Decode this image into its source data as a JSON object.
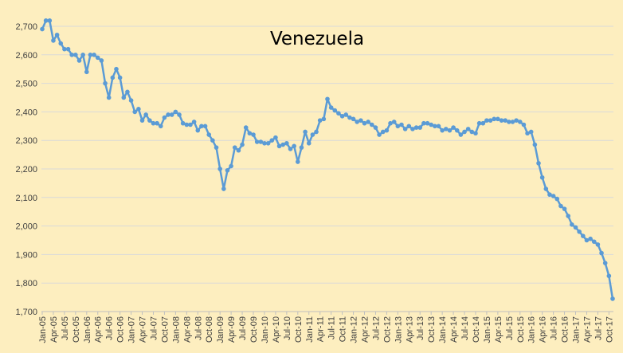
{
  "chart_data": {
    "type": "line",
    "title": "Venezuela",
    "xlabel": "",
    "ylabel": "",
    "ylim": [
      1700,
      2700
    ],
    "yticks": [
      1700,
      1800,
      1900,
      2000,
      2100,
      2200,
      2300,
      2400,
      2500,
      2600,
      2700
    ],
    "ytick_labels": [
      "1,700",
      "1,800",
      "1,900",
      "2,000",
      "2,100",
      "2,200",
      "2,300",
      "2,400",
      "2,500",
      "2,600",
      "2,700"
    ],
    "grid": "horizontal",
    "legend": "none",
    "colors": {
      "background": "#fdeebf",
      "series": "#5b9bd5",
      "grid": "#d9d9d9"
    },
    "x_tick_labels": [
      "Jan-05",
      "Apr-05",
      "Jul-05",
      "Oct-05",
      "Jan-06",
      "Apr-06",
      "Jul-06",
      "Oct-06",
      "Jan-07",
      "Apr-07",
      "Jul-07",
      "Oct-07",
      "Jan-08",
      "Apr-08",
      "Jul-08",
      "Oct-08",
      "Jan-09",
      "Apr-09",
      "Jul-09",
      "Oct-09",
      "Jan-10",
      "Apr-10",
      "Jul-10",
      "Oct-10",
      "Jan-11",
      "Apr-11",
      "Jul-11",
      "Oct-11",
      "Jan-12",
      "Apr-12",
      "Jul-12",
      "Oct-12",
      "Jan-13",
      "Apr-13",
      "Jul-13",
      "Oct-13",
      "Jan-14",
      "Apr-14",
      "Jul-14",
      "Oct-14",
      "Jan-15",
      "Apr-15",
      "Jul-15",
      "Oct-15",
      "Jan-16",
      "Apr-16",
      "Jul-16",
      "Oct-16",
      "Jan-17",
      "Apr-17",
      "Jul-17",
      "Oct-17"
    ],
    "series": [
      {
        "values": [
          2690,
          2720,
          2720,
          2650,
          2670,
          2640,
          2620,
          2620,
          2600,
          2600,
          2580,
          2600,
          2540,
          2600,
          2600,
          2590,
          2580,
          2500,
          2450,
          2520,
          2550,
          2520,
          2450,
          2470,
          2440,
          2400,
          2410,
          2370,
          2390,
          2370,
          2360,
          2360,
          2350,
          2380,
          2390,
          2390,
          2400,
          2390,
          2360,
          2355,
          2355,
          2365,
          2335,
          2350,
          2350,
          2320,
          2300,
          2275,
          2200,
          2130,
          2195,
          2210,
          2275,
          2265,
          2285,
          2345,
          2325,
          2320,
          2295,
          2295,
          2290,
          2290,
          2300,
          2310,
          2280,
          2285,
          2290,
          2270,
          2280,
          2225,
          2275,
          2330,
          2290,
          2320,
          2330,
          2370,
          2375,
          2445,
          2415,
          2405,
          2395,
          2385,
          2390,
          2380,
          2375,
          2365,
          2370,
          2360,
          2365,
          2355,
          2345,
          2320,
          2330,
          2335,
          2360,
          2365,
          2350,
          2355,
          2340,
          2350,
          2340,
          2345,
          2345,
          2360,
          2360,
          2355,
          2350,
          2350,
          2335,
          2340,
          2335,
          2345,
          2335,
          2320,
          2330,
          2340,
          2330,
          2325,
          2360,
          2360,
          2370,
          2370,
          2375,
          2375,
          2370,
          2370,
          2365,
          2365,
          2370,
          2365,
          2355,
          2325,
          2330,
          2285,
          2220,
          2170,
          2130,
          2110,
          2105,
          2095,
          2070,
          2060,
          2035,
          2005,
          1995,
          1980,
          1965,
          1950,
          1955,
          1945,
          1935,
          1905,
          1870,
          1825,
          1745
        ]
      }
    ]
  }
}
